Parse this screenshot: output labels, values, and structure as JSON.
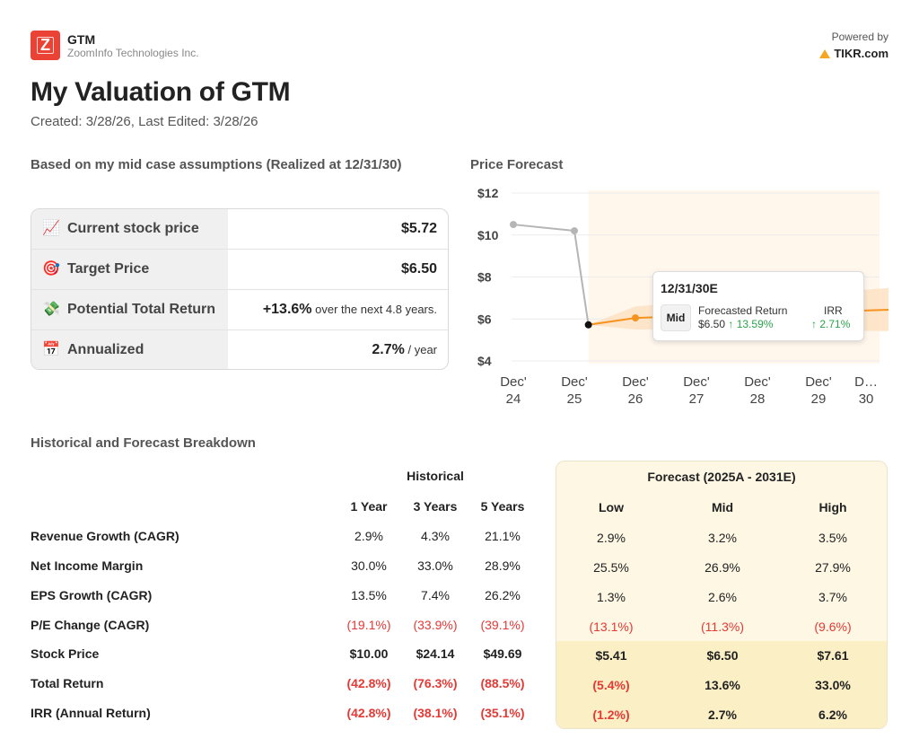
{
  "header": {
    "ticker": "GTM",
    "company": "ZoomInfo Technologies Inc.",
    "powered_by": "Powered by",
    "brand": "TIKR.com",
    "title": "My Valuation of GTM",
    "created": "Created: 3/28/26, Last Edited: 3/28/26"
  },
  "summary": {
    "heading": "Based on my mid case assumptions (Realized at 12/31/30)",
    "rows": [
      {
        "emoji": "📈",
        "label": "Current stock price",
        "value": "$5.72",
        "suffix": ""
      },
      {
        "emoji": "🎯",
        "label": "Target Price",
        "value": "$6.50",
        "suffix": ""
      },
      {
        "emoji": "💸",
        "label": "Potential Total Return",
        "value": "+13.6%",
        "suffix": " over the next 4.8 years."
      },
      {
        "emoji": "📅",
        "label": "Annualized",
        "value": "2.7%",
        "suffix": " / year"
      }
    ]
  },
  "chart": {
    "heading": "Price Forecast",
    "tooltip": {
      "date": "12/31/30E",
      "case": "Mid",
      "forecasted_return_label": "Forecasted Return",
      "forecasted_price": "$6.50",
      "forecasted_return": "↑ 13.59%",
      "irr_label": "IRR",
      "irr": "↑ 2.71%"
    }
  },
  "chart_data": {
    "type": "line",
    "title": "Price Forecast",
    "yticks": [
      "$12",
      "$10",
      "$8",
      "$6",
      "$4"
    ],
    "ylim": [
      4,
      12
    ],
    "xticks": [
      [
        "Dec'",
        "24"
      ],
      [
        "Dec'",
        "25"
      ],
      [
        "Dec'",
        "26"
      ],
      [
        "Dec'",
        "27"
      ],
      [
        "Dec'",
        "28"
      ],
      [
        "Dec'",
        "29"
      ],
      [
        "D…",
        "30"
      ]
    ],
    "historical": [
      {
        "x": 0,
        "y": 10.5
      },
      {
        "x": 1,
        "y": 10.2
      },
      {
        "x": 1.23,
        "y": 5.72
      }
    ],
    "forecast_mid": [
      {
        "x": 1.23,
        "y": 5.72
      },
      {
        "x": 2,
        "y": 6.05
      },
      {
        "x": 6.78,
        "y": 6.5
      }
    ],
    "forecast_band_low": [
      5.72,
      5.5,
      5.41
    ],
    "forecast_band_high": [
      5.72,
      6.6,
      7.61
    ],
    "colors": {
      "historical": "#b5b5b5",
      "forecast": "#f5931e",
      "band": "#fde3c6",
      "shade": "#fff6ec"
    }
  },
  "breakdown": {
    "heading": "Historical and Forecast Breakdown",
    "historical_label": "Historical",
    "forecast_label": "Forecast (2025A - 2031E)",
    "hist_cols": [
      "1 Year",
      "3 Years",
      "5 Years"
    ],
    "fc_cols": [
      "Low",
      "Mid",
      "High"
    ],
    "rows": [
      {
        "label": "Revenue Growth (CAGR)",
        "hist": [
          "2.9%",
          "4.3%",
          "21.1%"
        ],
        "fc": [
          "2.9%",
          "3.2%",
          "3.5%"
        ],
        "neg_hist": [
          false,
          false,
          false
        ],
        "neg_fc": [
          false,
          false,
          false
        ],
        "bold": false
      },
      {
        "label": "Net Income Margin",
        "hist": [
          "30.0%",
          "33.0%",
          "28.9%"
        ],
        "fc": [
          "25.5%",
          "26.9%",
          "27.9%"
        ],
        "neg_hist": [
          false,
          false,
          false
        ],
        "neg_fc": [
          false,
          false,
          false
        ],
        "bold": false
      },
      {
        "label": "EPS Growth (CAGR)",
        "hist": [
          "13.5%",
          "7.4%",
          "26.2%"
        ],
        "fc": [
          "1.3%",
          "2.6%",
          "3.7%"
        ],
        "neg_hist": [
          false,
          false,
          false
        ],
        "neg_fc": [
          false,
          false,
          false
        ],
        "bold": false
      },
      {
        "label": "P/E Change (CAGR)",
        "hist": [
          "(19.1%)",
          "(33.9%)",
          "(39.1%)"
        ],
        "fc": [
          "(13.1%)",
          "(11.3%)",
          "(9.6%)"
        ],
        "neg_hist": [
          true,
          true,
          true
        ],
        "neg_fc": [
          true,
          true,
          true
        ],
        "bold": false
      },
      {
        "label": "Stock Price",
        "hist": [
          "$10.00",
          "$24.14",
          "$49.69"
        ],
        "fc": [
          "$5.41",
          "$6.50",
          "$7.61"
        ],
        "neg_hist": [
          false,
          false,
          false
        ],
        "neg_fc": [
          false,
          false,
          false
        ],
        "bold": true
      },
      {
        "label": "Total Return",
        "hist": [
          "(42.8%)",
          "(76.3%)",
          "(88.5%)"
        ],
        "fc": [
          "(5.4%)",
          "13.6%",
          "33.0%"
        ],
        "neg_hist": [
          true,
          true,
          true
        ],
        "neg_fc": [
          true,
          false,
          false
        ],
        "bold": true
      },
      {
        "label": "IRR (Annual Return)",
        "hist": [
          "(42.8%)",
          "(38.1%)",
          "(35.1%)"
        ],
        "fc": [
          "(1.2%)",
          "2.7%",
          "6.2%"
        ],
        "neg_hist": [
          true,
          true,
          true
        ],
        "neg_fc": [
          true,
          false,
          false
        ],
        "bold": true
      }
    ]
  }
}
